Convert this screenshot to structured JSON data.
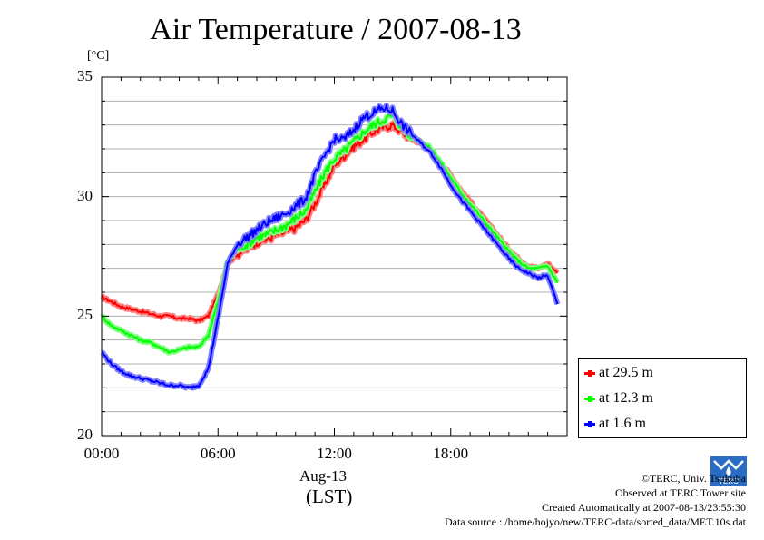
{
  "chart_data": {
    "type": "line",
    "title": "Air Temperature / 2007-08-13",
    "y_unit": "[°C]",
    "ylim": [
      20,
      35
    ],
    "yticks": [
      "20",
      "25",
      "30",
      "35"
    ],
    "xlim_hours": [
      0,
      24
    ],
    "xticks": [
      "00:00",
      "06:00",
      "12:00",
      "18:00"
    ],
    "x_date_label": "Aug-13",
    "x_time_zone_label": "(LST)",
    "grid": true,
    "legend_position": "bottom-right, outside plot",
    "series": [
      {
        "name": "at 29.5 m",
        "color": "#ff0000",
        "x": [
          0,
          0.5,
          1,
          1.5,
          2,
          2.5,
          3,
          3.5,
          4,
          4.5,
          5,
          5.5,
          6,
          6.5,
          7,
          7.5,
          8,
          8.5,
          9,
          9.5,
          10,
          10.5,
          11,
          11.5,
          12,
          12.5,
          13,
          13.5,
          14,
          14.5,
          15,
          15.5,
          16,
          16.5,
          17,
          17.5,
          18,
          18.5,
          19,
          19.5,
          20,
          20.5,
          21,
          21.5,
          22,
          22.5,
          23,
          23.5
        ],
        "y": [
          25.8,
          25.6,
          25.4,
          25.3,
          25.2,
          25.1,
          25.0,
          25.0,
          24.9,
          24.9,
          24.8,
          25.0,
          25.9,
          27.2,
          27.6,
          27.8,
          28.1,
          28.2,
          28.4,
          28.5,
          28.7,
          29.0,
          29.7,
          30.5,
          31.3,
          31.7,
          32.1,
          32.4,
          32.7,
          32.9,
          33.0,
          32.7,
          32.4,
          32.2,
          31.9,
          31.4,
          30.9,
          30.3,
          29.8,
          29.3,
          28.8,
          28.3,
          27.8,
          27.4,
          27.1,
          27.0,
          27.2,
          26.8
        ]
      },
      {
        "name": "at 12.3 m",
        "color": "#00ff00",
        "x": [
          0,
          0.5,
          1,
          1.5,
          2,
          2.5,
          3,
          3.5,
          4,
          4.5,
          5,
          5.5,
          6,
          6.5,
          7,
          7.5,
          8,
          8.5,
          9,
          9.5,
          10,
          10.5,
          11,
          11.5,
          12,
          12.5,
          13,
          13.5,
          14,
          14.5,
          15,
          15.5,
          16,
          16.5,
          17,
          17.5,
          18,
          18.5,
          19,
          19.5,
          20,
          20.5,
          21,
          21.5,
          22,
          22.5,
          23,
          23.5
        ],
        "y": [
          25.0,
          24.6,
          24.4,
          24.2,
          24.0,
          23.9,
          23.7,
          23.5,
          23.6,
          23.7,
          23.7,
          24.2,
          25.6,
          27.3,
          27.8,
          28.0,
          28.3,
          28.4,
          28.6,
          28.8,
          29.1,
          29.4,
          30.2,
          31.0,
          31.6,
          31.9,
          32.3,
          32.7,
          33.0,
          33.2,
          33.4,
          32.9,
          32.5,
          32.3,
          32.0,
          31.4,
          30.8,
          30.2,
          29.7,
          29.2,
          28.7,
          28.2,
          27.7,
          27.3,
          27.0,
          27.0,
          27.1,
          26.4
        ]
      },
      {
        "name": "at 1.6 m",
        "color": "#0000ff",
        "x": [
          0,
          0.5,
          1,
          1.5,
          2,
          2.5,
          3,
          3.5,
          4,
          4.5,
          5,
          5.5,
          6,
          6.5,
          7,
          7.5,
          8,
          8.5,
          9,
          9.5,
          10,
          10.5,
          11,
          11.5,
          12,
          12.5,
          13,
          13.5,
          14,
          14.5,
          15,
          15.5,
          16,
          16.5,
          17,
          17.5,
          18,
          18.5,
          19,
          19.5,
          20,
          20.5,
          21,
          21.5,
          22,
          22.5,
          23,
          23.5
        ],
        "y": [
          23.5,
          23.0,
          22.7,
          22.5,
          22.4,
          22.3,
          22.2,
          22.1,
          22.1,
          22.0,
          22.1,
          22.8,
          24.9,
          27.2,
          28.0,
          28.3,
          28.6,
          28.9,
          29.1,
          29.3,
          29.6,
          29.9,
          30.9,
          31.7,
          32.4,
          32.4,
          32.8,
          33.3,
          33.5,
          33.7,
          33.6,
          33.0,
          32.6,
          32.2,
          31.8,
          31.2,
          30.5,
          29.9,
          29.4,
          28.9,
          28.4,
          27.9,
          27.4,
          27.0,
          26.8,
          26.6,
          26.7,
          25.5
        ]
      }
    ]
  },
  "credits": {
    "copyright": "©TERC, Univ. Tsukuba",
    "site": "Observed at TERC Tower site",
    "created": "Created Automatically at 2007-08-13/23:55:30",
    "source": "Data source : /home/hojyo/new/TERC-data/sorted_data/MET.10s.dat",
    "logo_text": "TERC"
  }
}
